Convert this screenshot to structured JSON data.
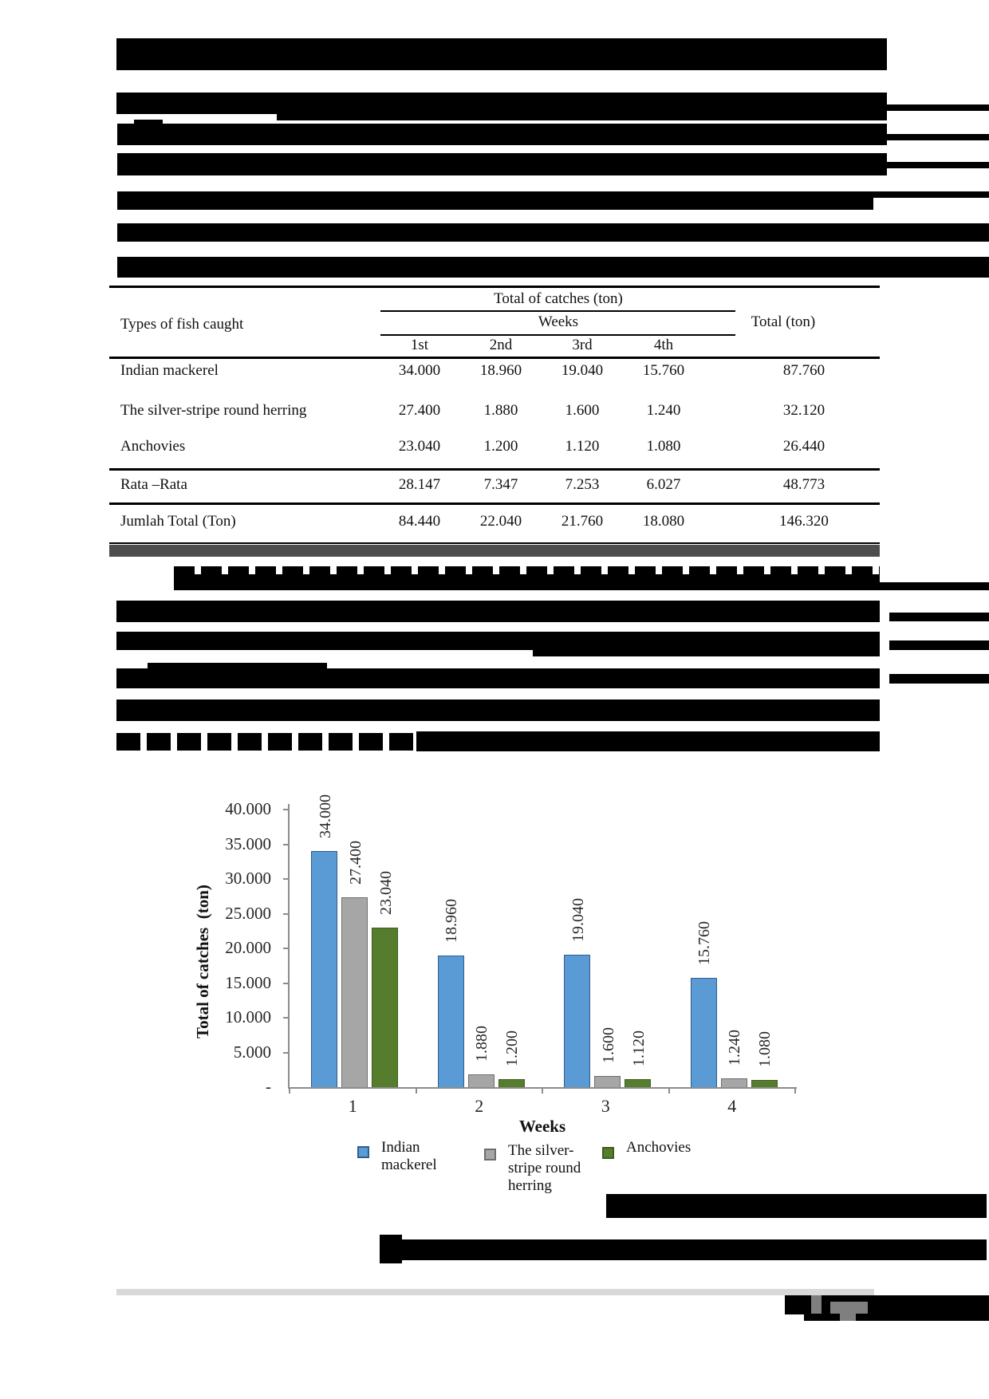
{
  "table": {
    "header": {
      "col0": "Types of fish caught",
      "span_title": "Total of catches (ton)",
      "weeks_label": "Weeks",
      "week_cols": [
        "1st",
        "2nd",
        "3rd",
        "4th"
      ],
      "total_col": "Total (ton)"
    },
    "rows": [
      {
        "label": "Indian mackerel",
        "values": [
          "34.000",
          "18.960",
          "19.040",
          "15.760",
          "87.760"
        ]
      },
      {
        "label": "The silver-stripe round herring",
        "values": [
          "27.400",
          "1.880",
          "1.600",
          "1.240",
          "32.120"
        ]
      },
      {
        "label": "Anchovies",
        "values": [
          "23.040",
          "1.200",
          "1.120",
          "1.080",
          "26.440"
        ]
      },
      {
        "label": "Rata –Rata",
        "values": [
          "28.147",
          "7.347",
          "7.253",
          "6.027",
          "48.773"
        ]
      },
      {
        "label": "Jumlah Total (Ton)",
        "values": [
          "84.440",
          "22.040",
          "21.760",
          "18.080",
          "146.320"
        ]
      }
    ]
  },
  "chart_data": {
    "type": "bar",
    "title": "",
    "xlabel": "Weeks",
    "ylabel": "Total of catches  (ton)",
    "categories": [
      "1",
      "2",
      "3",
      "4"
    ],
    "series": [
      {
        "name": "Indian mackerel",
        "color": "#5B9BD5",
        "border": "#2F5E8C",
        "values": [
          34000,
          18960,
          19040,
          15760
        ],
        "labels": [
          "34.000",
          "18.960",
          "19.040",
          "15.760"
        ]
      },
      {
        "name": "The silver-stripe round herring",
        "color": "#A6A6A6",
        "border": "#6E6E6E",
        "values": [
          27400,
          1880,
          1600,
          1240
        ],
        "labels": [
          "27.400",
          "1.880",
          "1.600",
          "1.240"
        ]
      },
      {
        "name": "Anchovies",
        "color": "#567D2E",
        "border": "#3F5C20",
        "values": [
          23040,
          1200,
          1120,
          1080
        ],
        "labels": [
          "23.040",
          "1.200",
          "1.120",
          "1.080"
        ]
      }
    ],
    "y_ticks": [
      "40.000",
      "35.000",
      "30.000",
      "25.000",
      "20.000",
      "15.000",
      "10.000",
      "5.000",
      "-"
    ],
    "ylim": [
      0,
      40000
    ],
    "grid": false,
    "legend_position": "bottom",
    "legend": [
      {
        "label_lines": [
          "Indian",
          "mackerel"
        ]
      },
      {
        "label_lines": [
          "The silver-",
          "stripe round",
          "herring"
        ]
      },
      {
        "label_lines": [
          "Anchovies"
        ]
      }
    ]
  }
}
